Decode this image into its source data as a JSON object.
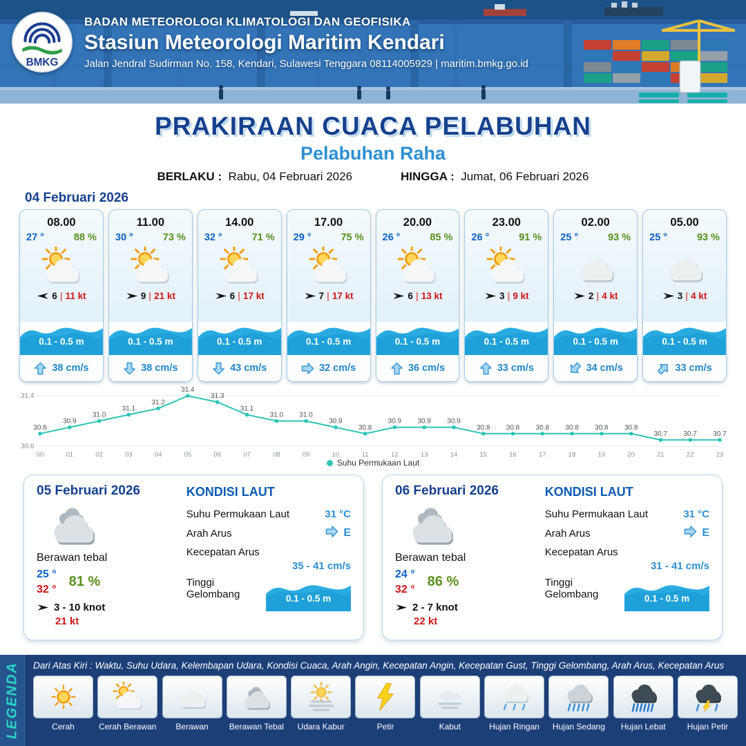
{
  "header": {
    "logo_text": "BMKG",
    "agency": "BADAN METEOROLOGI KLIMATOLOGI DAN GEOFISIKA",
    "station": "Stasiun Meteorologi Maritim Kendari",
    "address": "Jalan Jendral Sudirman No. 158, Kendari, Sulawesi Tenggara  08114005929 | maritim.bmkg.go.id"
  },
  "title": {
    "main": "PRAKIRAAN CUACA PELABUHAN",
    "port": "Pelabuhan Raha",
    "valid_from_label": "BERLAKU :",
    "valid_from": "Rabu, 04 Februari 2026",
    "valid_to_label": "HINGGA :",
    "valid_to": "Jumat, 06 Februari 2026"
  },
  "hourly": {
    "date": "04 Februari 2026",
    "sep": "|",
    "cards": [
      {
        "time": "08.00",
        "temp": "27 °",
        "rh": "88 %",
        "icon": "cerah-berawan",
        "wind_dir": "left",
        "wind_speed": "6",
        "gust": "11 kt",
        "wave": "0.1 - 0.5 m",
        "current_dir": "up",
        "current_speed": "38 cm/s"
      },
      {
        "time": "11.00",
        "temp": "30 °",
        "rh": "73 %",
        "icon": "cerah-berawan",
        "wind_dir": "right",
        "wind_speed": "9",
        "gust": "21 kt",
        "wave": "0.1 - 0.5 m",
        "current_dir": "down",
        "current_speed": "38 cm/s"
      },
      {
        "time": "14.00",
        "temp": "32 °",
        "rh": "71 %",
        "icon": "cerah-berawan",
        "wind_dir": "right",
        "wind_speed": "6",
        "gust": "17 kt",
        "wave": "0.1 - 0.5 m",
        "current_dir": "down",
        "current_speed": "43 cm/s"
      },
      {
        "time": "17.00",
        "temp": "29 °",
        "rh": "75 %",
        "icon": "cerah-berawan",
        "wind_dir": "right",
        "wind_speed": "7",
        "gust": "17 kt",
        "wave": "0.1 - 0.5 m",
        "current_dir": "right",
        "current_speed": "32 cm/s"
      },
      {
        "time": "20.00",
        "temp": "26 °",
        "rh": "85 %",
        "icon": "cerah-berawan",
        "wind_dir": "right",
        "wind_speed": "6",
        "gust": "13 kt",
        "wave": "0.1 - 0.5 m",
        "current_dir": "up",
        "current_speed": "36 cm/s"
      },
      {
        "time": "23.00",
        "temp": "26 °",
        "rh": "91 %",
        "icon": "cerah-berawan",
        "wind_dir": "right",
        "wind_speed": "3",
        "gust": "9 kt",
        "wave": "0.1 - 0.5 m",
        "current_dir": "up",
        "current_speed": "33 cm/s"
      },
      {
        "time": "02.00",
        "temp": "25 °",
        "rh": "93 %",
        "icon": "berawan",
        "wind_dir": "right",
        "wind_speed": "2",
        "gust": "4 kt",
        "wave": "0.1 - 0.5 m",
        "current_dir": "down-left",
        "current_speed": "34 cm/s"
      },
      {
        "time": "05.00",
        "temp": "25 °",
        "rh": "93 %",
        "icon": "berawan",
        "wind_dir": "right",
        "wind_speed": "3",
        "gust": "4 kt",
        "wave": "0.1 - 0.5 m",
        "current_dir": "up-right",
        "current_speed": "33 cm/s"
      }
    ]
  },
  "chart_data": {
    "type": "line",
    "legend": "Suhu Permukaan Laut",
    "x": [
      "00",
      "01",
      "02",
      "03",
      "04",
      "05",
      "06",
      "07",
      "08",
      "09",
      "10",
      "11",
      "12",
      "13",
      "14",
      "15",
      "16",
      "17",
      "18",
      "19",
      "20",
      "21",
      "22",
      "23"
    ],
    "series": [
      {
        "name": "Suhu Permukaan Laut",
        "values": [
          30.8,
          30.9,
          31.0,
          31.1,
          31.2,
          31.4,
          31.3,
          31.1,
          31.0,
          31.0,
          30.9,
          30.8,
          30.9,
          30.9,
          30.9,
          30.8,
          30.8,
          30.8,
          30.8,
          30.8,
          30.8,
          30.7,
          30.7,
          30.7
        ]
      }
    ],
    "ylim": [
      30.6,
      31.4
    ],
    "line_color": "#2ec4b6",
    "grid": true,
    "legend_position": "bottom"
  },
  "daily": {
    "labels": {
      "heading": "KONDISI LAUT",
      "sst": "Suhu Permukaan Laut",
      "dir": "Arah Arus",
      "speed": "Kecepatan Arus",
      "wave": "Tinggi Gelombang"
    },
    "cards": [
      {
        "date": "05 Februari 2026",
        "icon": "berawan-tebal",
        "desc": "Berawan tebal",
        "temp_min": "25 °",
        "temp_max": "32 °",
        "rh": "81 %",
        "wind": "3 - 10 knot",
        "gust": "21 kt",
        "sst": "31 °C",
        "current_dir": "E",
        "current_speed": "35 - 41 cm/s",
        "wave": "0.1 - 0.5 m"
      },
      {
        "date": "06 Februari 2026",
        "icon": "berawan-tebal",
        "desc": "Berawan tebal",
        "temp_min": "24 °",
        "temp_max": "32 °",
        "rh": "86 %",
        "wind": "2 - 7 knot",
        "gust": "22 kt",
        "sst": "31 °C",
        "current_dir": "E",
        "current_speed": "31 - 41 cm/s",
        "wave": "0.1 - 0.5 m"
      }
    ]
  },
  "legend": {
    "title": "LEGENDA",
    "note": "Dari Atas Kiri : Waktu, Suhu Udara, Kelembapan Udara, Kondisi Cuaca, Arah Angin, Kecepatan Angin, Kecepatan Gust, Tinggi Gelombang, Arah Arus, Kecepatan Arus",
    "items": [
      {
        "label": "Cerah",
        "icon": "cerah"
      },
      {
        "label": "Cerah Berawan",
        "icon": "cerah-berawan"
      },
      {
        "label": "Berawan",
        "icon": "berawan"
      },
      {
        "label": "Berawan Tebal",
        "icon": "berawan-tebal"
      },
      {
        "label": "Udara Kabur",
        "icon": "udara-kabur"
      },
      {
        "label": "Petir",
        "icon": "petir"
      },
      {
        "label": "Kabut",
        "icon": "kabut"
      },
      {
        "label": "Hujan Ringan",
        "icon": "hujan-ringan"
      },
      {
        "label": "Hujan Sedang",
        "icon": "hujan-sedang"
      },
      {
        "label": "Hujan Lebat",
        "icon": "hujan-lebat"
      },
      {
        "label": "Hujan Petir",
        "icon": "hujan-petir"
      }
    ]
  }
}
